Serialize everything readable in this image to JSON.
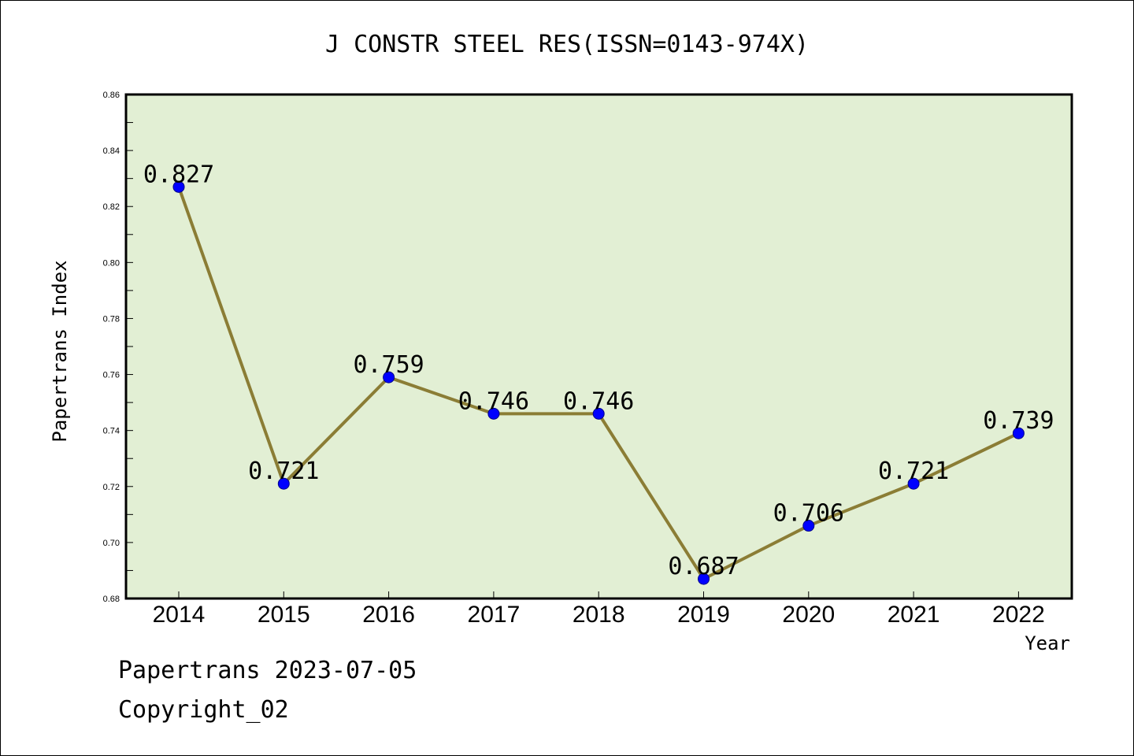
{
  "chart_data": {
    "type": "line",
    "title": "J CONSTR STEEL RES(ISSN=0143-974X)",
    "xlabel": "Year",
    "ylabel": "Papertrans Index",
    "categories": [
      "2014",
      "2015",
      "2016",
      "2017",
      "2018",
      "2019",
      "2020",
      "2021",
      "2022"
    ],
    "values": [
      0.827,
      0.721,
      0.759,
      0.746,
      0.746,
      0.687,
      0.706,
      0.721,
      0.739
    ],
    "data_labels": [
      "0.827",
      "0.721",
      "0.759",
      "0.746",
      "0.746",
      "0.687",
      "0.706",
      "0.721",
      "0.739"
    ],
    "ylim": [
      0.68,
      0.86
    ],
    "yticks": [
      "0.68",
      "0.70",
      "0.72",
      "0.74",
      "0.76",
      "0.78",
      "0.80",
      "0.82",
      "0.84",
      "0.86"
    ],
    "grid": false,
    "legend": "none",
    "colors": {
      "line": "#8B7D35",
      "marker": "#0000FF",
      "plot_background": "#E2EFD4"
    }
  },
  "footer": {
    "line1": "Papertrans 2023-07-05",
    "line2": "Copyright_02"
  }
}
